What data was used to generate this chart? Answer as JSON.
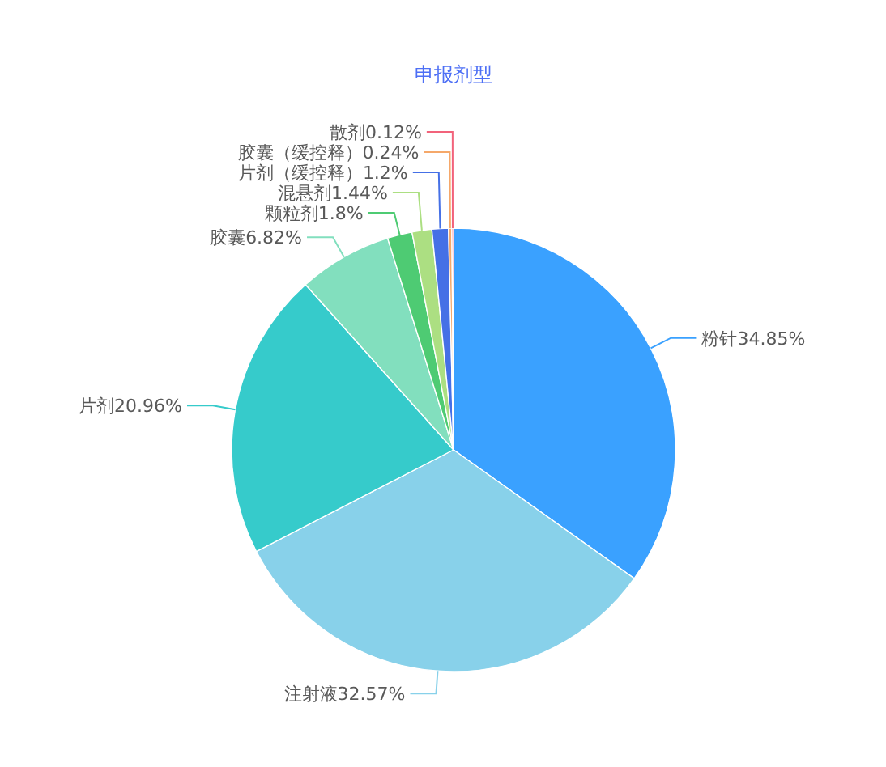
{
  "chart_data": {
    "type": "pie",
    "title": "申报剂型",
    "categories": [
      "粉针",
      "注射液",
      "片剂",
      "胶囊",
      "颗粒剂",
      "混悬剂",
      "片剂（缓控释）",
      "胶囊（缓控释）",
      "散剂"
    ],
    "values": [
      34.85,
      32.57,
      20.96,
      6.82,
      1.8,
      1.44,
      1.2,
      0.24,
      0.12
    ],
    "value_labels": [
      "34.85%",
      "32.57%",
      "20.96%",
      "6.82%",
      "1.8%",
      "1.44%",
      "1.2%",
      "0.24%",
      "0.12%"
    ],
    "colors": [
      "#3aa1ff",
      "#88d1ea",
      "#36cbcb",
      "#82dfbe",
      "#4ecb73",
      "#acdf82",
      "#4570e6",
      "#f5a86a",
      "#f2637b"
    ]
  }
}
